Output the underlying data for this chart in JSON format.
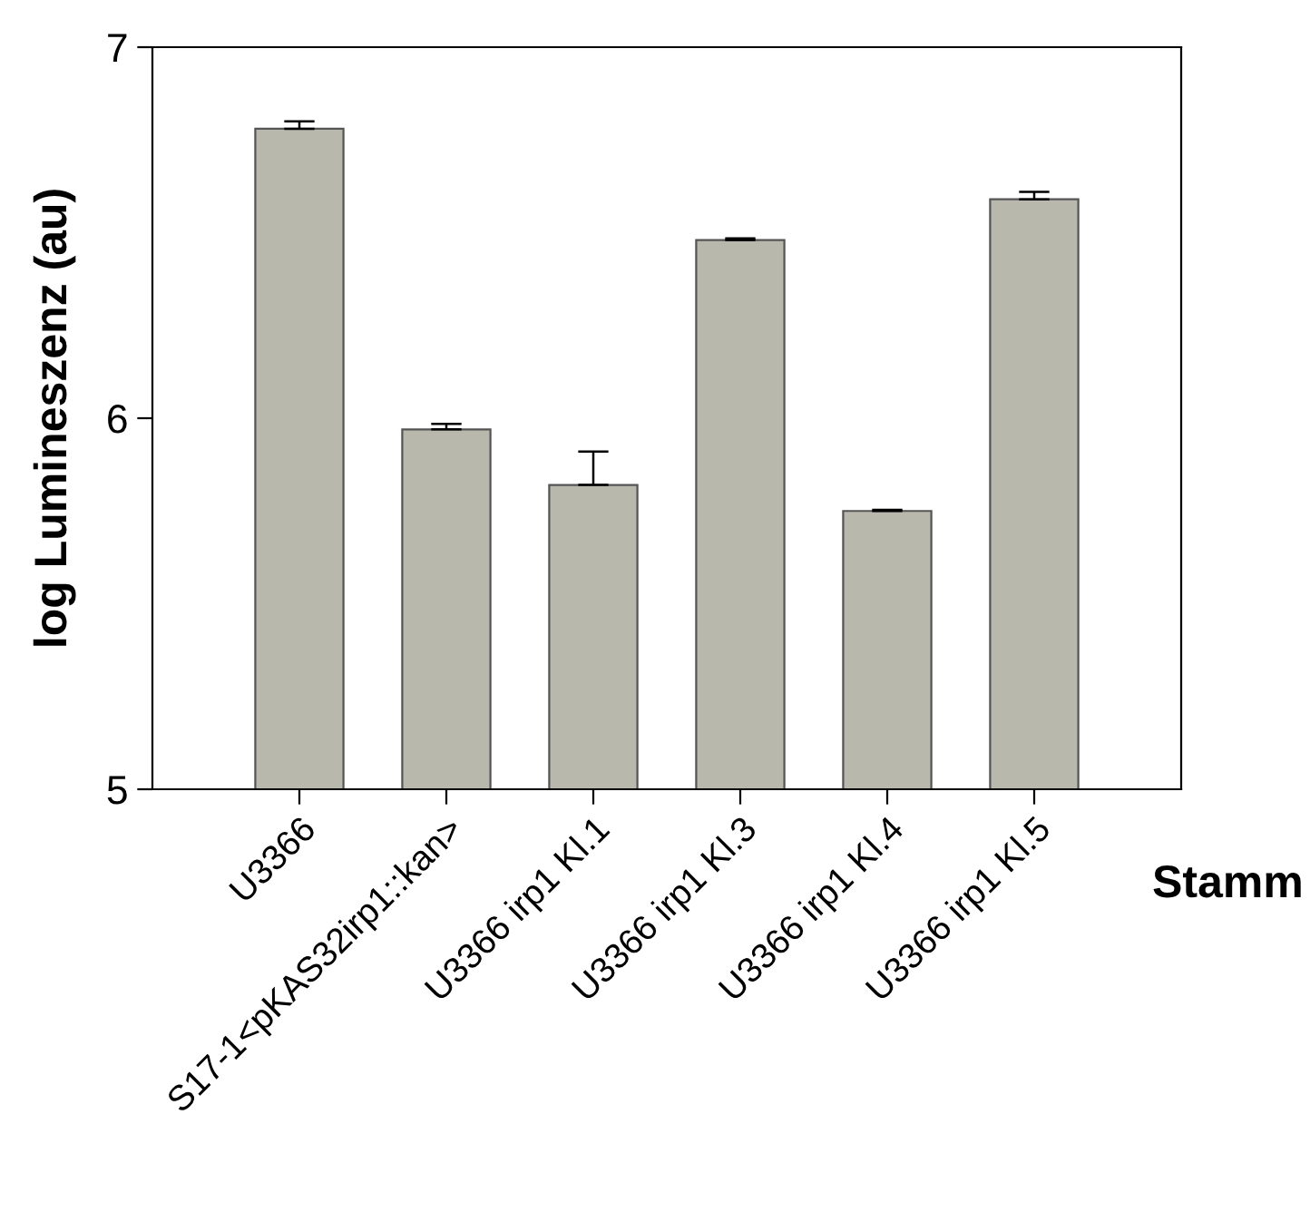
{
  "chart_data": {
    "type": "bar",
    "categories": [
      "U3366",
      "S17-1<pKAS32irp1::kan>",
      "U3366 irp1 Kl.1",
      "U3366 irp1 Kl.3",
      "U3366 irp1 Kl.4",
      "U3366 irp1 Kl.5"
    ],
    "values": [
      6.78,
      5.97,
      5.82,
      6.48,
      5.75,
      6.59
    ],
    "errors": [
      [
        6.78,
        6.8
      ],
      [
        5.97,
        5.985
      ],
      [
        5.82,
        5.91
      ],
      [
        6.48,
        6.485
      ],
      [
        5.75,
        5.753
      ],
      [
        6.59,
        6.61
      ]
    ],
    "color": "#b8b8ac",
    "ylabel": "log Lumineszenz (au)",
    "xlabel": "Stamm",
    "ylim": [
      5,
      7
    ],
    "yticks": [
      5,
      6,
      7
    ],
    "grid": false,
    "legend": false
  }
}
